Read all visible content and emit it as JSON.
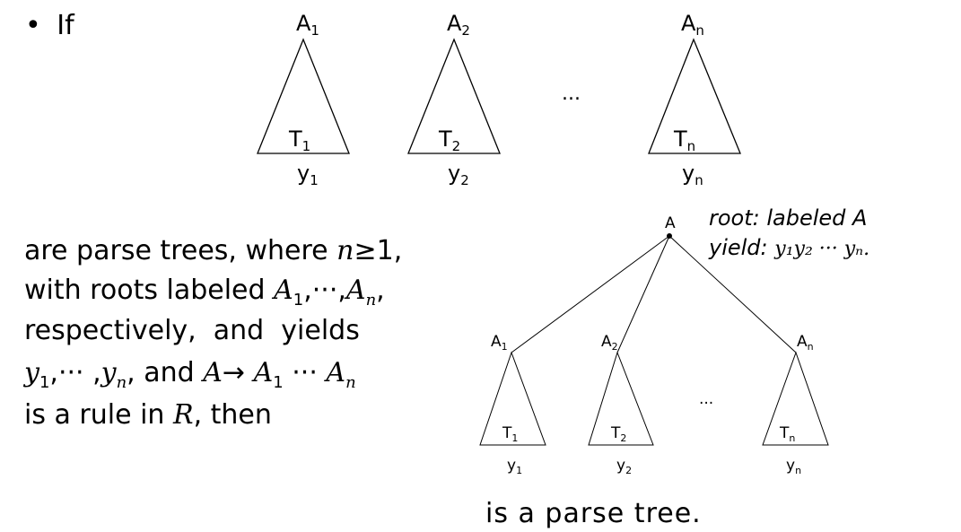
{
  "bullet": "•",
  "if_word": "If",
  "top_trees": [
    {
      "root": "A",
      "root_sub": "1",
      "tree": "T",
      "tree_sub": "1",
      "yield": "y",
      "yield_sub": "1"
    },
    {
      "root": "A",
      "root_sub": "2",
      "tree": "T",
      "tree_sub": "2",
      "yield": "y",
      "yield_sub": "2"
    },
    {
      "root": "A",
      "root_sub": "n",
      "tree": "T",
      "tree_sub": "n",
      "yield": "y",
      "yield_sub": "n"
    }
  ],
  "top_dots": "...",
  "body_lines": {
    "l1_text": "are parse trees, where ",
    "l1_math": "n",
    "l1_rel": "≥1,",
    "l2_text": "with roots labeled ",
    "l2_math": "A",
    "l2_sub1": "1",
    "l2_mid": ",···,",
    "l2_math2": "A",
    "l2_sub2": "n",
    "l2_end": ",",
    "l3_text": "respectively,  and  yields",
    "l4_y": "y",
    "l4_sub1": "1",
    "l4_mid": ",···  ,",
    "l4_y2": "y",
    "l4_sub2": "n",
    "l4_text": ", and ",
    "l4_A": "A",
    "l4_arrow": "→ ",
    "l4_A1": "A",
    "l4_A1sub": "1",
    "l4_dots": " ··· ",
    "l4_An": "A",
    "l4_Ansub": "n",
    "l5_text": "is a rule in ",
    "l5_R": "R",
    "l5_end": ", then"
  },
  "combined_tree": {
    "root": "A",
    "children": [
      {
        "root": "A",
        "root_sub": "1",
        "tree": "T",
        "tree_sub": "1",
        "yield": "y",
        "yield_sub": "1"
      },
      {
        "root": "A",
        "root_sub": "2",
        "tree": "T",
        "tree_sub": "2",
        "yield": "y",
        "yield_sub": "2"
      },
      {
        "root": "A",
        "root_sub": "n",
        "tree": "T",
        "tree_sub": "n",
        "yield": "y",
        "yield_sub": "n"
      }
    ],
    "dots": "...",
    "root_note": "root:  labeled A",
    "yield_note_label": "yield:",
    "yield_note_math": "y₁y₂ ··· yₙ."
  },
  "conclusion": "is a parse tree."
}
